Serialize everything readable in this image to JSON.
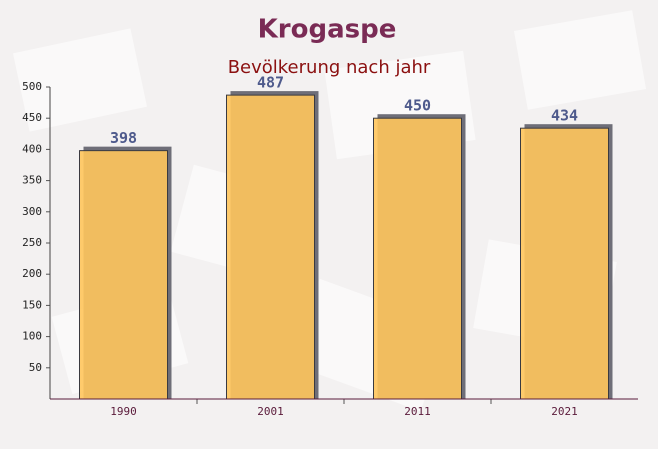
{
  "chart_data": {
    "type": "bar",
    "title": "Krogaspe",
    "subtitle": "Bevölkerung nach jahr",
    "categories": [
      "1990",
      "2001",
      "2011",
      "2021"
    ],
    "values": [
      398,
      487,
      450,
      434
    ],
    "color": "#ffc55c",
    "ylim": [
      0,
      500
    ],
    "yticks": [
      50,
      100,
      150,
      200,
      250,
      300,
      350,
      400,
      450,
      500
    ],
    "grid": false
  }
}
